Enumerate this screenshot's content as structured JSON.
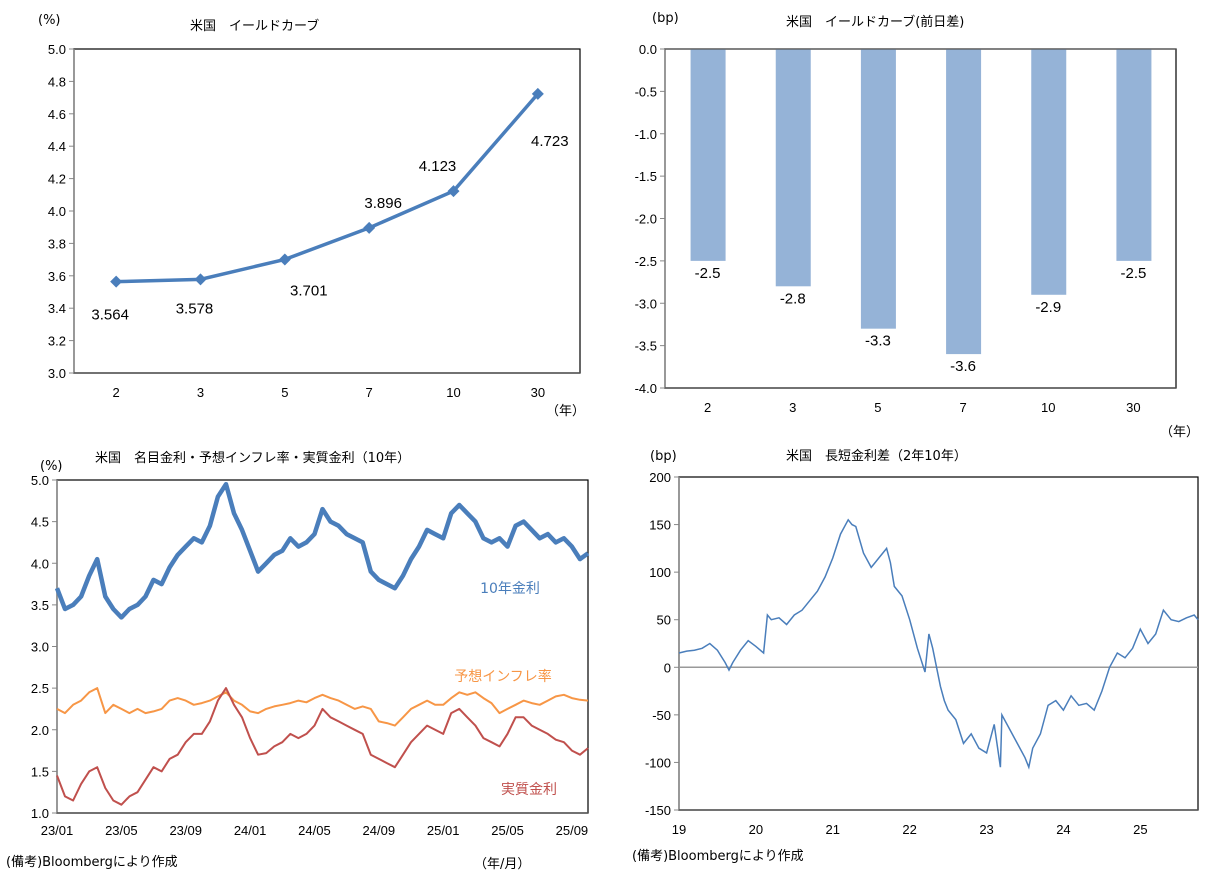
{
  "chart_data": [
    {
      "type": "line",
      "title": "米国　イールドカーブ",
      "ylabel": "(%)",
      "xlabel": "（年）",
      "categories": [
        "2",
        "3",
        "5",
        "7",
        "10",
        "30"
      ],
      "values": [
        3.564,
        3.578,
        3.701,
        3.896,
        4.123,
        4.723
      ],
      "data_labels": [
        "3.564",
        "3.578",
        "3.701",
        "3.896",
        "4.123",
        "4.723"
      ],
      "ylim": [
        3.0,
        5.0
      ],
      "yticks": [
        "5.0",
        "4.8",
        "4.6",
        "4.4",
        "4.2",
        "4.0",
        "3.8",
        "3.6",
        "3.4",
        "3.2",
        "3.0"
      ],
      "marker": "diamond",
      "color": "#4A7EBB"
    },
    {
      "type": "bar",
      "title": "米国　イールドカーブ(前日差)",
      "ylabel": "(bp)",
      "xlabel": "（年）",
      "categories": [
        "2",
        "3",
        "5",
        "7",
        "10",
        "30"
      ],
      "values": [
        -2.5,
        -2.8,
        -3.3,
        -3.6,
        -2.9,
        -2.5
      ],
      "data_labels": [
        "-2.5",
        "-2.8",
        "-3.3",
        "-3.6",
        "-2.9",
        "-2.5"
      ],
      "ylim": [
        -4.0,
        0.0
      ],
      "yticks": [
        "0.0",
        "-0.5",
        "-1.0",
        "-1.5",
        "-2.0",
        "-2.5",
        "-3.0",
        "-3.5",
        "-4.0"
      ],
      "color": "#95B3D7"
    },
    {
      "type": "line",
      "title": "米国　名目金利・予想インフレ率・実質金利（10年）",
      "ylabel": "(%)",
      "xlabel": "（年/月）",
      "xticks": [
        "23/01",
        "23/05",
        "23/09",
        "24/01",
        "24/05",
        "24/09",
        "25/01",
        "25/05",
        "25/09"
      ],
      "yticks": [
        "5.0",
        "4.5",
        "4.0",
        "3.5",
        "3.0",
        "2.5",
        "2.0",
        "1.5",
        "1.0"
      ],
      "ylim": [
        1.0,
        5.0
      ],
      "x_range_months": [
        0,
        33
      ],
      "series": [
        {
          "name": "10年金利",
          "color": "#4A7EBB",
          "x": [
            0,
            0.5,
            1,
            1.5,
            2,
            2.5,
            3,
            3.5,
            4,
            4.5,
            5,
            5.5,
            6,
            6.5,
            7,
            7.5,
            8,
            8.5,
            9,
            9.5,
            10,
            10.5,
            11,
            11.5,
            12,
            12.5,
            13,
            13.5,
            14,
            14.5,
            15,
            15.5,
            16,
            16.5,
            17,
            17.5,
            18,
            18.5,
            19,
            19.5,
            20,
            20.5,
            21,
            21.5,
            22,
            22.5,
            23,
            23.5,
            24,
            24.5,
            25,
            25.5,
            26,
            26.5,
            27,
            27.5,
            28,
            28.5,
            29,
            29.5,
            30,
            30.5,
            31,
            31.5,
            32,
            32.5,
            33
          ],
          "values": [
            3.7,
            3.45,
            3.5,
            3.6,
            3.85,
            4.05,
            3.6,
            3.45,
            3.35,
            3.45,
            3.5,
            3.6,
            3.8,
            3.75,
            3.95,
            4.1,
            4.2,
            4.3,
            4.25,
            4.45,
            4.8,
            4.95,
            4.6,
            4.4,
            4.15,
            3.9,
            4.0,
            4.1,
            4.15,
            4.3,
            4.2,
            4.25,
            4.35,
            4.65,
            4.5,
            4.45,
            4.35,
            4.3,
            4.25,
            3.9,
            3.8,
            3.75,
            3.7,
            3.85,
            4.05,
            4.2,
            4.4,
            4.35,
            4.3,
            4.6,
            4.7,
            4.6,
            4.5,
            4.3,
            4.25,
            4.3,
            4.2,
            4.45,
            4.5,
            4.4,
            4.3,
            4.35,
            4.25,
            4.3,
            4.2,
            4.05,
            4.12
          ]
        },
        {
          "name": "予想インフレ率",
          "color": "#F79646",
          "x": [
            0,
            0.5,
            1,
            1.5,
            2,
            2.5,
            3,
            3.5,
            4,
            4.5,
            5,
            5.5,
            6,
            6.5,
            7,
            7.5,
            8,
            8.5,
            9,
            9.5,
            10,
            10.5,
            11,
            11.5,
            12,
            12.5,
            13,
            13.5,
            14,
            14.5,
            15,
            15.5,
            16,
            16.5,
            17,
            17.5,
            18,
            18.5,
            19,
            19.5,
            20,
            20.5,
            21,
            21.5,
            22,
            22.5,
            23,
            23.5,
            24,
            24.5,
            25,
            25.5,
            26,
            26.5,
            27,
            27.5,
            28,
            28.5,
            29,
            29.5,
            30,
            30.5,
            31,
            31.5,
            32,
            32.5,
            33
          ],
          "values": [
            2.25,
            2.2,
            2.3,
            2.35,
            2.45,
            2.5,
            2.2,
            2.3,
            2.25,
            2.2,
            2.25,
            2.2,
            2.22,
            2.25,
            2.35,
            2.38,
            2.35,
            2.3,
            2.32,
            2.35,
            2.4,
            2.45,
            2.35,
            2.3,
            2.22,
            2.2,
            2.25,
            2.28,
            2.3,
            2.32,
            2.35,
            2.33,
            2.38,
            2.42,
            2.38,
            2.35,
            2.3,
            2.25,
            2.28,
            2.25,
            2.1,
            2.08,
            2.05,
            2.15,
            2.25,
            2.3,
            2.35,
            2.3,
            2.3,
            2.38,
            2.45,
            2.42,
            2.45,
            2.38,
            2.32,
            2.2,
            2.25,
            2.3,
            2.35,
            2.32,
            2.3,
            2.35,
            2.4,
            2.42,
            2.38,
            2.36,
            2.35
          ]
        },
        {
          "name": "実質金利",
          "color": "#C0504D",
          "x": [
            0,
            0.5,
            1,
            1.5,
            2,
            2.5,
            3,
            3.5,
            4,
            4.5,
            5,
            5.5,
            6,
            6.5,
            7,
            7.5,
            8,
            8.5,
            9,
            9.5,
            10,
            10.5,
            11,
            11.5,
            12,
            12.5,
            13,
            13.5,
            14,
            14.5,
            15,
            15.5,
            16,
            16.5,
            17,
            17.5,
            18,
            18.5,
            19,
            19.5,
            20,
            20.5,
            21,
            21.5,
            22,
            22.5,
            23,
            23.5,
            24,
            24.5,
            25,
            25.5,
            26,
            26.5,
            27,
            27.5,
            28,
            28.5,
            29,
            29.5,
            30,
            30.5,
            31,
            31.5,
            32,
            32.5,
            33
          ],
          "values": [
            1.45,
            1.2,
            1.15,
            1.35,
            1.5,
            1.55,
            1.3,
            1.15,
            1.1,
            1.2,
            1.25,
            1.4,
            1.55,
            1.5,
            1.65,
            1.7,
            1.85,
            1.95,
            1.95,
            2.1,
            2.35,
            2.5,
            2.3,
            2.15,
            1.9,
            1.7,
            1.72,
            1.8,
            1.85,
            1.95,
            1.9,
            1.95,
            2.05,
            2.25,
            2.15,
            2.1,
            2.05,
            2.0,
            1.95,
            1.7,
            1.65,
            1.6,
            1.55,
            1.7,
            1.85,
            1.95,
            2.05,
            2.0,
            1.95,
            2.2,
            2.25,
            2.15,
            2.05,
            1.9,
            1.85,
            1.8,
            1.95,
            2.15,
            2.15,
            2.05,
            2.0,
            1.95,
            1.88,
            1.85,
            1.75,
            1.7,
            1.78
          ]
        }
      ]
    },
    {
      "type": "line",
      "title": "米国　長短金利差（2年10年）",
      "ylabel": "(bp)",
      "xticks": [
        "19",
        "20",
        "21",
        "22",
        "23",
        "24",
        "25"
      ],
      "yticks": [
        "200",
        "150",
        "100",
        "50",
        "0",
        "-50",
        "-100",
        "-150"
      ],
      "ylim": [
        -150,
        200
      ],
      "x_range_years": [
        2019,
        2025.75
      ],
      "series": [
        {
          "name": "長短金利差",
          "color": "#4A7EBB",
          "x": [
            2019,
            2019.1,
            2019.2,
            2019.3,
            2019.4,
            2019.5,
            2019.6,
            2019.65,
            2019.7,
            2019.8,
            2019.9,
            2020.0,
            2020.1,
            2020.15,
            2020.2,
            2020.3,
            2020.4,
            2020.5,
            2020.6,
            2020.7,
            2020.8,
            2020.9,
            2021.0,
            2021.1,
            2021.2,
            2021.25,
            2021.3,
            2021.4,
            2021.5,
            2021.55,
            2021.6,
            2021.7,
            2021.75,
            2021.8,
            2021.9,
            2022.0,
            2022.1,
            2022.2,
            2022.25,
            2022.3,
            2022.4,
            2022.45,
            2022.5,
            2022.6,
            2022.7,
            2022.8,
            2022.9,
            2023.0,
            2023.1,
            2023.18,
            2023.2,
            2023.3,
            2023.4,
            2023.5,
            2023.55,
            2023.6,
            2023.7,
            2023.8,
            2023.9,
            2024.0,
            2024.1,
            2024.2,
            2024.3,
            2024.4,
            2024.5,
            2024.6,
            2024.7,
            2024.8,
            2024.9,
            2025.0,
            2025.1,
            2025.2,
            2025.3,
            2025.4,
            2025.5,
            2025.6,
            2025.7,
            2025.75
          ],
          "values": [
            15,
            17,
            18,
            20,
            25,
            18,
            5,
            -3,
            5,
            18,
            28,
            22,
            15,
            55,
            50,
            52,
            45,
            55,
            60,
            70,
            80,
            95,
            115,
            140,
            155,
            150,
            148,
            120,
            105,
            110,
            115,
            125,
            110,
            85,
            75,
            50,
            20,
            -5,
            35,
            20,
            -20,
            -35,
            -45,
            -55,
            -80,
            -70,
            -85,
            -90,
            -60,
            -105,
            -50,
            -65,
            -80,
            -95,
            -105,
            -85,
            -70,
            -40,
            -35,
            -45,
            -30,
            -40,
            -38,
            -45,
            -25,
            0,
            15,
            10,
            20,
            40,
            25,
            35,
            60,
            50,
            48,
            52,
            55,
            50
          ]
        }
      ]
    }
  ],
  "notes": {
    "source_left": "(備考)Bloombergにより作成",
    "source_right": "(備考)Bloombergにより作成"
  }
}
